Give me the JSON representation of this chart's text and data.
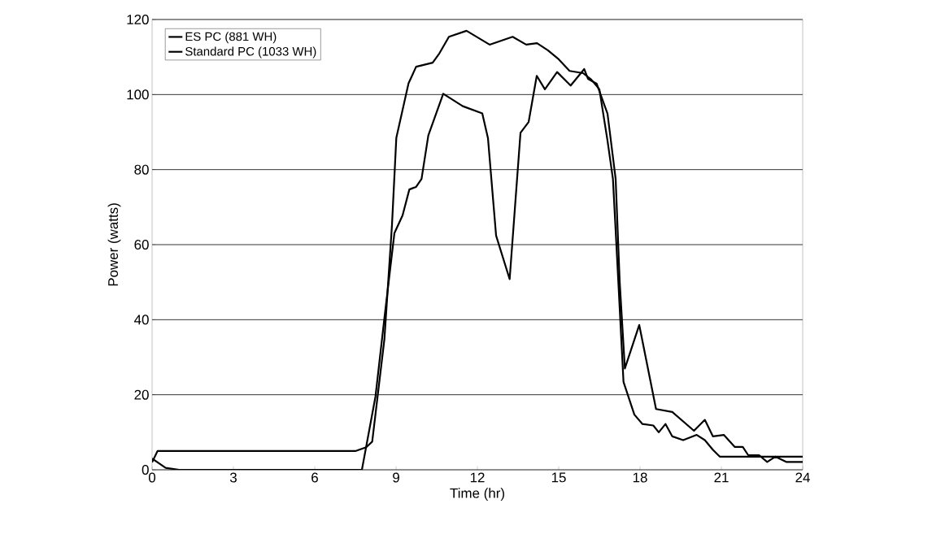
{
  "chart_data": {
    "type": "line",
    "xlabel": "Time (hr)",
    "ylabel": "Power (watts)",
    "xlim": [
      0,
      24
    ],
    "xticks": [
      0,
      3,
      6,
      9,
      12,
      15,
      18,
      21,
      24
    ],
    "ylim": [
      0,
      120
    ],
    "yticks": [
      0,
      20,
      40,
      60,
      80,
      100,
      120
    ],
    "grid": "y",
    "legend": "top left",
    "marker": "none",
    "line_style": "solid",
    "series": [
      {
        "name": "ES PC (881 WH)",
        "color": "#000000",
        "x": [
          0,
          0.5,
          1,
          7.74,
          8.24,
          8.57,
          8.94,
          9.24,
          9.49,
          9.74,
          9.94,
          10.19,
          10.74,
          11.46,
          12.18,
          12.39,
          12.69,
          13.19,
          13.59,
          13.89,
          14.19,
          14.49,
          14.94,
          15.44,
          15.94,
          16.08,
          16.4,
          16.8,
          17.1,
          17.25,
          17.44,
          17.97,
          18.59,
          19.19,
          19.99,
          20.39,
          20.69,
          21.09,
          21.49,
          21.79,
          21.99,
          22.39,
          22.69,
          22.99,
          23.39,
          24
        ],
        "values": [
          3,
          0.5,
          0,
          0,
          19.5,
          40.4,
          63.1,
          67.8,
          74.7,
          75.4,
          77.5,
          89.1,
          100.2,
          96.9,
          95,
          88.4,
          62.4,
          50.8,
          89.8,
          92.7,
          105,
          101.4,
          106,
          102.4,
          106.8,
          104.2,
          102.9,
          94.9,
          77.5,
          50,
          27,
          38.6,
          16.2,
          15.4,
          10.4,
          13.3,
          8.9,
          9.3,
          6.1,
          6.1,
          3.9,
          3.9,
          2.1,
          3.5,
          2.1,
          2.1
        ]
      },
      {
        "name": "Standard PC (1033 WH)",
        "color": "#000000",
        "x": [
          0,
          0.2,
          7.5,
          7.9,
          8.12,
          8.57,
          8.85,
          9.01,
          9.46,
          9.74,
          10.35,
          10.6,
          10.95,
          11.6,
          12.45,
          13.3,
          13.8,
          14.2,
          14.6,
          15.0,
          15.4,
          15.9,
          16.2,
          16.5,
          16.8,
          17.0,
          17.2,
          17.39,
          17.79,
          18.09,
          18.49,
          18.69,
          18.94,
          19.19,
          19.59,
          20.09,
          20.39,
          20.69,
          20.94,
          24
        ],
        "values": [
          2,
          5,
          5,
          6,
          7.5,
          34.8,
          65.3,
          88.5,
          103,
          107.4,
          108.5,
          111,
          115.4,
          117,
          113.3,
          115.4,
          113.3,
          113.7,
          111.8,
          109.4,
          106.3,
          105.7,
          104,
          101.4,
          87.7,
          77.5,
          50,
          23.4,
          14.7,
          12.2,
          11.8,
          10,
          12.2,
          8.9,
          7.9,
          9.3,
          7.9,
          5.3,
          3.5,
          3.5
        ]
      }
    ]
  }
}
